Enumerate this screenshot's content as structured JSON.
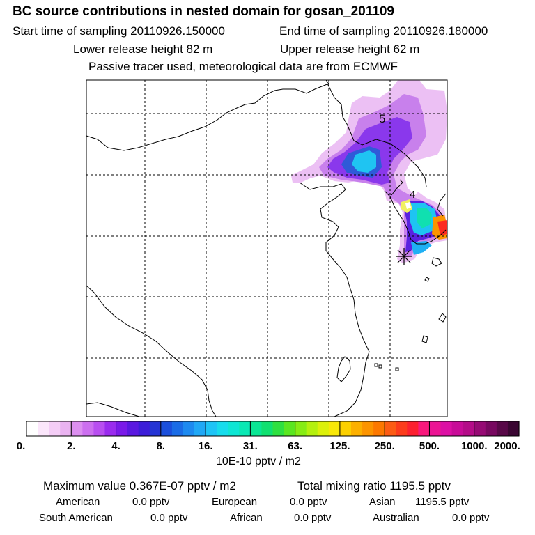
{
  "header": {
    "title": "BC  source contributions in nested domain for gosan_201109",
    "start_time": "Start time of sampling 20110926.150000",
    "end_time": "End time of sampling 20110926.180000",
    "lower_height": "Lower release height   82 m",
    "upper_height": "Upper release height   62 m",
    "tracer": "Passive tracer used, meteorological data are from ECMWF"
  },
  "map": {
    "trajectory_labels": [
      "5",
      "4"
    ],
    "frame_color": "#000000"
  },
  "colorbar": {
    "ticks": [
      "0.",
      "2.",
      "4.",
      "8.",
      "16.",
      "31.",
      "63.",
      "125.",
      "250.",
      "500.",
      "1000.",
      "2000."
    ],
    "colors": [
      "#ffffff",
      "#fbe6fb",
      "#f4cdf6",
      "#eab3f1",
      "#dc8ff0",
      "#cc6fef",
      "#b84ef0",
      "#9a2bee",
      "#7a1ae8",
      "#5a18e0",
      "#3c1dd8",
      "#2434d4",
      "#1b4fdc",
      "#1a6ce6",
      "#1d8af0",
      "#20a8f6",
      "#1ec4f6",
      "#17dcec",
      "#0ee6d4",
      "#0ae8b4",
      "#0ae694",
      "#10e070",
      "#2ee040",
      "#5ae620",
      "#86ec14",
      "#b4f00e",
      "#dcf00a",
      "#f8e808",
      "#fcd000",
      "#fcb000",
      "#fc9400",
      "#fc7800",
      "#fc5c14",
      "#fc3c1c",
      "#fc2030",
      "#f8187c",
      "#ec1494",
      "#dc10a4",
      "#c80c98",
      "#b40c88",
      "#960a74",
      "#780860",
      "#580848",
      "#3a0632"
    ],
    "units": "10E-10 pptv / m2"
  },
  "stats": {
    "max_value": "Maximum value  0.367E-07 pptv / m2",
    "total_mixing": "Total mixing ratio     1195.5 pptv",
    "regions": {
      "american_label": "American",
      "american_value": "0.0 pptv",
      "european_label": "European",
      "european_value": "0.0 pptv",
      "asian_label": "Asian",
      "asian_value": "1195.5 pptv",
      "south_american_label": "South American",
      "south_american_value": "0.0 pptv",
      "african_label": "African",
      "african_value": "0.0 pptv",
      "australian_label": "Australian",
      "australian_value": "0.0 pptv"
    }
  }
}
